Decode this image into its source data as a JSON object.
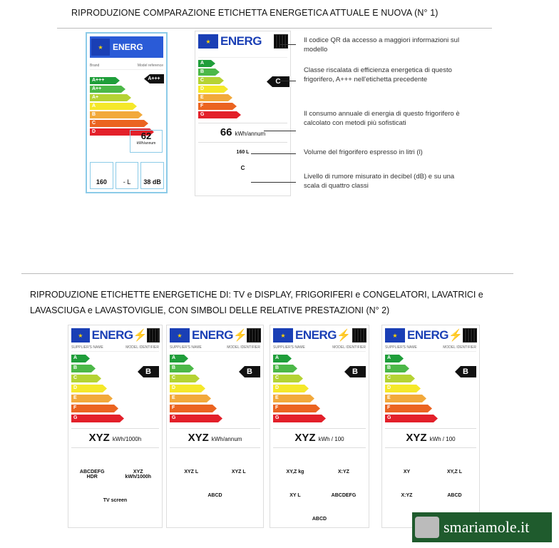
{
  "section1": {
    "title": "RIPRODUZIONE  COMPARAZIONE ETICHETTA ENERGETICA  ATTUALE  E NUOVA  (N° 1)"
  },
  "old_label": {
    "logo": "ENERG",
    "brand": "Brand",
    "model": "Model reference",
    "classes": [
      "A+++",
      "A++",
      "A+",
      "A",
      "B",
      "C",
      "D"
    ],
    "rating": "A+++",
    "consumption": "62",
    "unit": "kWh/annum",
    "volume": "160",
    "freezer": "- L",
    "noise": "38 dB"
  },
  "new_label": {
    "logo": "ENERG",
    "classes": [
      "A",
      "B",
      "C",
      "D",
      "E",
      "F",
      "G"
    ],
    "rating": "C",
    "consumption": "66",
    "unit": "kWh/annum",
    "volume": "160 L",
    "noise_class": "C"
  },
  "annotations": [
    "Il codice QR da accesso a maggiori informazioni sul modello",
    "Classe riscalata di efficienza energetica di questo frigorifero, A+++ nell'etichetta precedente",
    "Il consumo annuale di energia di questo frigorifero è calcolato con metodi più sofisticati",
    "Volume del frigorifero espresso in litri (l)",
    "Livello di rumore misurato in decibel (dB) e su una scala di quattro classi"
  ],
  "section2": {
    "line1": "RIPRODUZIONE ETICHETTE ENERGETICHE  DI:  TV e DISPLAY, FRIGORIFERI e CONGELATORI, LAVATRICI e",
    "line2": "LAVASCIUGA e LAVASTOVIGLIE, CON  SIMBOLI DELLE  RELATIVE PRESTAZIONI  (N° 2)"
  },
  "labels": [
    {
      "supplier": "SUPPLIER'S NAME",
      "model": "MODEL IDENTIFIER",
      "rating": "B",
      "value": "XYZ",
      "unit": "kWh/1000h",
      "icons": [
        "ABCDEFG HDR",
        "XYZ kWh/1000h",
        "TV screen"
      ]
    },
    {
      "supplier": "SUPPLIER'S NAME",
      "model": "MODEL IDENTIFIER",
      "rating": "B",
      "value": "XYZ",
      "unit": "kWh/annum",
      "icons": [
        "XYZ L",
        "XYZ L",
        "ABCD"
      ]
    },
    {
      "supplier": "SUPPLIER'S NAME",
      "model": "MODEL IDENTIFIER",
      "rating": "B",
      "value": "XYZ",
      "unit": "kWh / 100",
      "icons": [
        "XY,Z kg",
        "X:YZ",
        "XY L",
        "ABCDEFG",
        "ABCD"
      ]
    },
    {
      "supplier": "SUPPLIER'S NAME",
      "model": "MODEL IDENTIFIER",
      "rating": "B",
      "value": "XYZ",
      "unit": "kWh / 100",
      "icons": [
        "XY",
        "XY,Z L",
        "X:YZ",
        "ABCD"
      ]
    }
  ],
  "classes": [
    "A",
    "B",
    "C",
    "D",
    "E",
    "F",
    "G"
  ],
  "colors": [
    "#1f9e3a",
    "#4cb848",
    "#b5d334",
    "#f5e82a",
    "#f2a93b",
    "#eb6421",
    "#e3202a"
  ],
  "old_colors": [
    "#1f9e3a",
    "#4cb848",
    "#b5d334",
    "#f5e82a",
    "#f2a93b",
    "#eb6421",
    "#e3202a"
  ],
  "watermark": "smariamole.it"
}
